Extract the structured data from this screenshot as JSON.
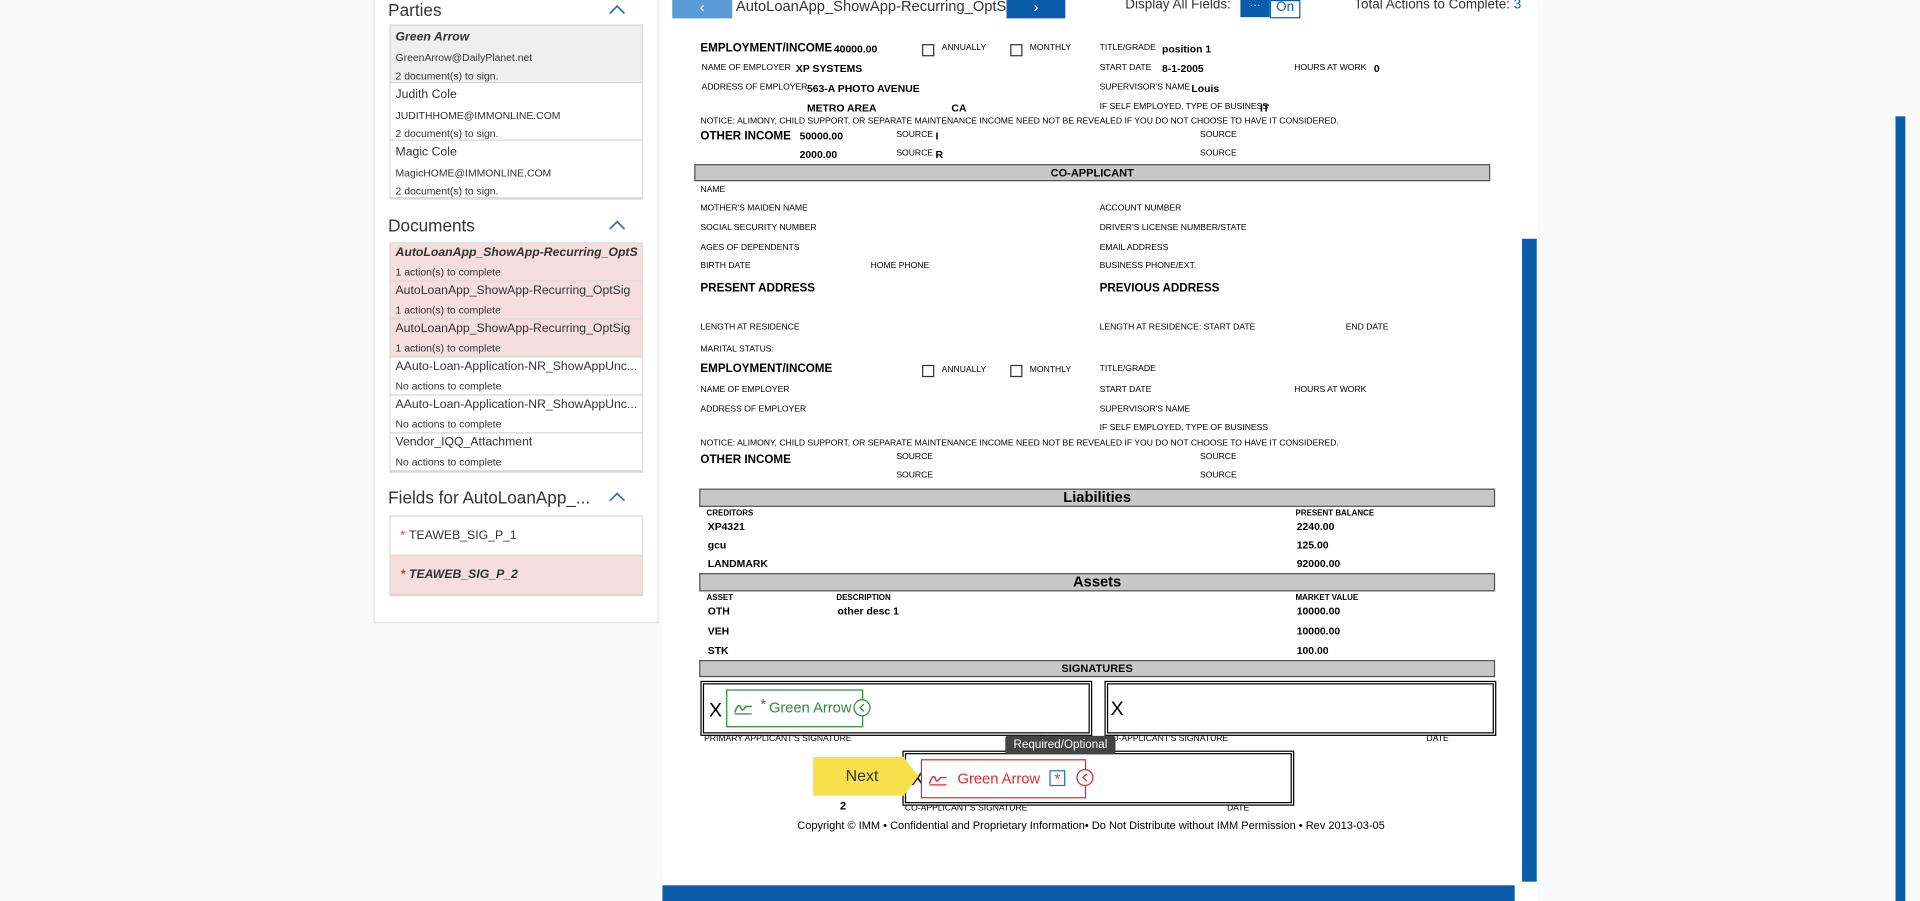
{
  "sidebar": {
    "parties_title": "Parties",
    "parties": [
      {
        "name": "Green Arrow",
        "email": "GreenArrow@DailyPlanet.net",
        "status": "2 document(s) to sign."
      },
      {
        "name": "Judith Cole",
        "email": "JUDITHHOME@IMMONLINE.COM",
        "status": "2 document(s) to sign."
      },
      {
        "name": "Magic Cole",
        "email": "MagicHOME@IMMONLINE.COM",
        "status": "2 document(s) to sign."
      }
    ],
    "documents_title": "Documents",
    "documents": [
      {
        "name": "AutoLoanApp_ShowApp-Recurring_OptSig",
        "status": "1 action(s) to complete"
      },
      {
        "name": "AutoLoanApp_ShowApp-Recurring_OptSig",
        "status": "1 action(s) to complete"
      },
      {
        "name": "AutoLoanApp_ShowApp-Recurring_OptSig",
        "status": "1 action(s) to complete"
      },
      {
        "name": "AAuto-Loan-Application-NR_ShowAppUnc...",
        "status": "No actions to complete"
      },
      {
        "name": "AAuto-Loan-Application-NR_ShowAppUnc...",
        "status": "No actions to complete"
      },
      {
        "name": "Vendor_IQQ_Attachment",
        "status": "No actions to complete"
      }
    ],
    "fields_title": "Fields for AutoLoanApp_...",
    "fields": [
      {
        "marker": "*",
        "name": "TEAWEB_SIG_P_1"
      },
      {
        "marker": "*",
        "name": "TEAWEB_SIG_P_2"
      }
    ]
  },
  "toolbar": {
    "document_title": "AutoLoanApp_ShowApp-Recurring_OptSig",
    "display_label": "Display All Fields:",
    "toggle_on": "On",
    "total_label": "Total Actions to Complete:",
    "total_value": "3"
  },
  "form": {
    "bars": [
      "CO-APPLICANT",
      "Liabilities",
      "Assets",
      "SIGNATURES"
    ],
    "texts": [
      "EMPLOYMENT/INCOME",
      "40000.00",
      "ANNUALLY",
      "MONTHLY",
      "TITLE/GRADE",
      "position 1",
      "NAME OF EMPLOYER",
      "XP SYSTEMS",
      "START DATE",
      "8-1-2005",
      "HOURS AT WORK",
      "0",
      "ADDRESS OF EMPLOYER",
      "563-A PHOTO AVENUE",
      "SUPERVISOR'S NAME",
      "Louis",
      "METRO AREA",
      "CA",
      "IF SELF EMPLOYED, TYPE OF BUSINESS",
      "IT",
      "NOTICE: ALIMONY, CHILD SUPPORT, OR SEPARATE MAINTENANCE INCOME NEED NOT BE REVEALED IF YOU DO NOT CHOOSE TO HAVE IT CONSIDERED.",
      "OTHER INCOME",
      "50000.00",
      "SOURCE",
      "I",
      "SOURCE",
      "2000.00",
      "SOURCE",
      "R",
      "SOURCE",
      "NAME",
      "MOTHER'S MAIDEN NAME",
      "ACCOUNT NUMBER",
      "SOCIAL SECURITY NUMBER",
      "DRIVER'S LICENSE NUMBER/STATE",
      "AGES OF DEPENDENTS",
      "EMAIL ADDRESS",
      "BIRTH DATE",
      "HOME PHONE",
      "BUSINESS PHONE/EXT.",
      "PRESENT ADDRESS",
      "PREVIOUS ADDRESS",
      "LENGTH AT RESIDENCE",
      "LENGTH AT RESIDENCE:  START DATE",
      "END DATE",
      "MARITAL STATUS:",
      "EMPLOYMENT/INCOME",
      "ANNUALLY",
      "MONTHLY",
      "TITLE/GRADE",
      "NAME OF EMPLOYER",
      "START DATE",
      "HOURS AT WORK",
      "ADDRESS OF EMPLOYER",
      "SUPERVISOR'S NAME",
      "IF SELF EMPLOYED, TYPE OF BUSINESS",
      "NOTICE: ALIMONY, CHILD SUPPORT, OR SEPARATE MAINTENANCE INCOME NEED NOT BE REVEALED IF YOU DO NOT CHOOSE TO HAVE IT CONSIDERED.",
      "OTHER INCOME",
      "SOURCE",
      "SOURCE",
      "SOURCE",
      "SOURCE",
      "CREDITORS",
      "PRESENT BALANCE",
      "XP4321",
      "2240.00",
      "gcu",
      "125.00",
      "LANDMARK",
      "92000.00",
      "ASSET",
      "DESCRIPTION",
      "MARKET VALUE",
      "OTH",
      "other desc 1",
      "10000.00",
      "VEH",
      "10000.00",
      "STK",
      "100.00",
      "PRIMARY APPLICANT'S SIGNATURE",
      "DATE",
      "CO-APPLICANT'S SIGNATURE",
      "DATE",
      "CO-APPLICANT'S SIGNATURE",
      "DATE",
      "X",
      "X",
      "X",
      "Copyright © IMM • Confidential and Proprietary Information• Do Not Distribute without IMM Permission • Rev 2013-03-05"
    ]
  },
  "signing": {
    "tag1_marker": "*",
    "tag1_name": "Green Arrow",
    "tag2_name": "Green Arrow",
    "tag2_marker": "*",
    "tooltip": "Required/Optional",
    "next": "Next",
    "next_page": "2"
  }
}
